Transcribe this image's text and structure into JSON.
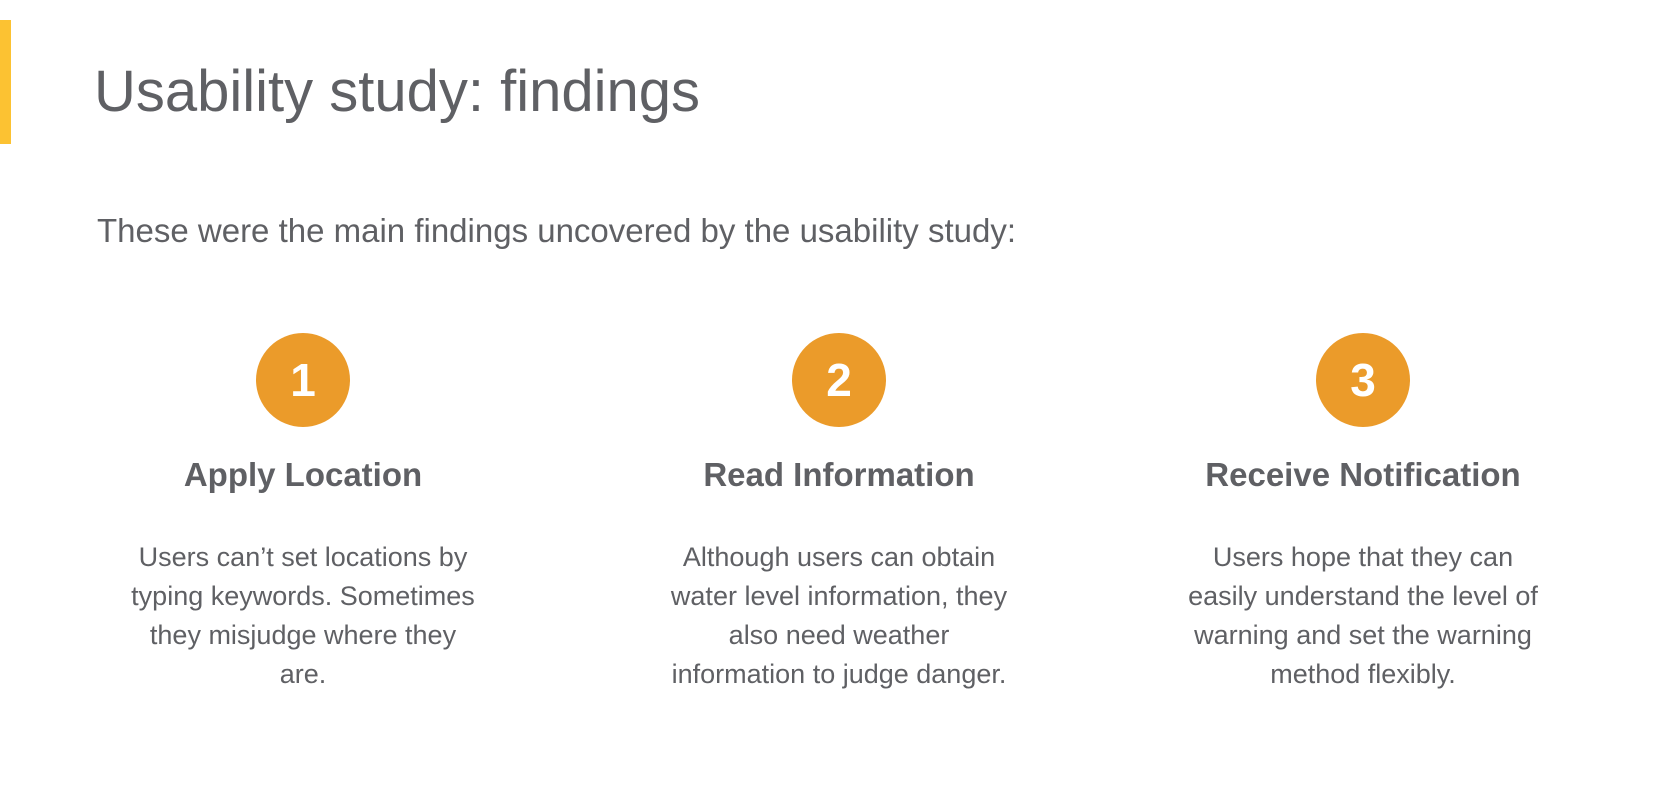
{
  "slide": {
    "title": "Usability study: findings",
    "intro": "These were the main findings uncovered by the usability study:",
    "accent_color": "#fcc232",
    "circle_color": "#eb9b2a"
  },
  "findings": [
    {
      "number": "1",
      "title": "Apply Location",
      "description": "Users can’t set locations by typing keywords. Sometimes they misjudge where they are."
    },
    {
      "number": "2",
      "title": "Read Information",
      "description": "Although users can obtain water level information, they also need weather information to judge danger."
    },
    {
      "number": "3",
      "title": "Receive Notification",
      "description": "Users hope that they can easily understand the level of warning and set the warning method flexibly."
    }
  ]
}
